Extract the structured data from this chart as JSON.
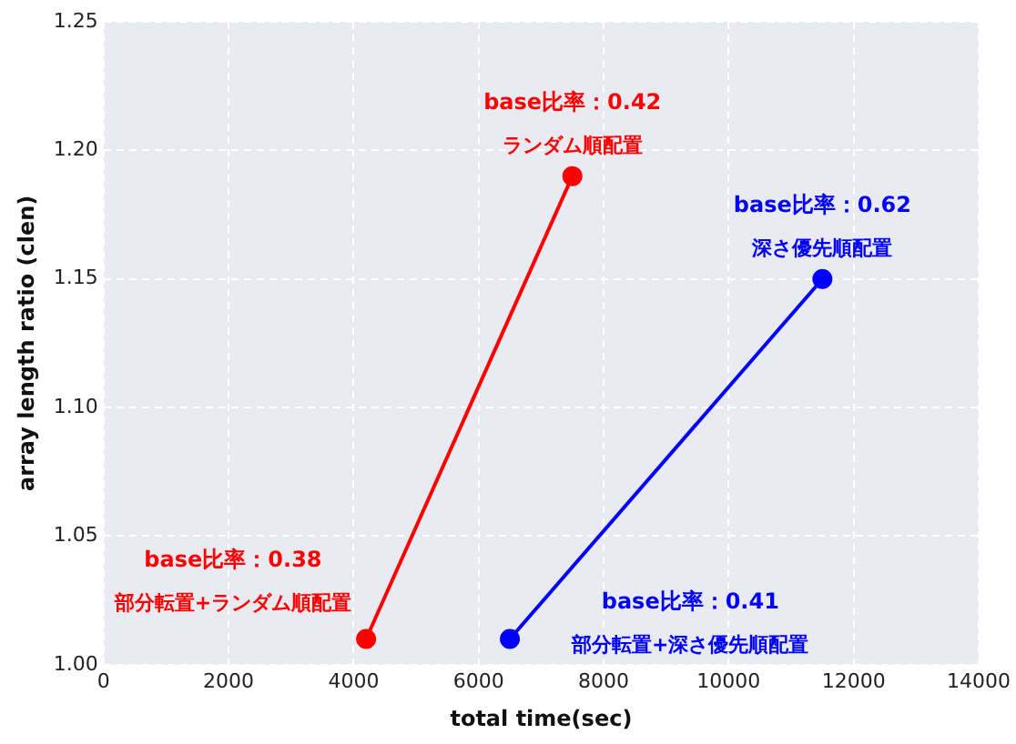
{
  "chart_data": {
    "type": "line",
    "xlabel": "total time(sec)",
    "ylabel": "array length ratio (clen)",
    "series": [
      {
        "color": "#ff0000",
        "x": [
          4200,
          7500
        ],
        "values": [
          1.01,
          1.19
        ]
      },
      {
        "color": "#0000ff",
        "x": [
          6500,
          11500
        ],
        "values": [
          1.01,
          1.15
        ]
      }
    ],
    "xlim": [
      0,
      14000
    ],
    "xticks": [
      0,
      2000,
      4000,
      6000,
      8000,
      10000,
      12000,
      14000
    ],
    "ylim": [
      1.0,
      1.25
    ],
    "yticks": [
      {
        "value": 1.0,
        "label": "1.00"
      },
      {
        "value": 1.05,
        "label": "1.05"
      },
      {
        "value": 1.1,
        "label": "1.10"
      },
      {
        "value": 1.15,
        "label": "1.15"
      },
      {
        "value": 1.2,
        "label": "1.20"
      },
      {
        "value": 1.25,
        "label": "1.25"
      }
    ],
    "grid": true,
    "legend": false,
    "marker": "circle",
    "line_style": "solid",
    "annotations": [
      {
        "text": "base比率：0.42\nランダム順配置",
        "x": 7500,
        "y": 1.19
      },
      {
        "text": "base比率：0.62\n深さ優先順配置",
        "x": 11500,
        "y": 1.15
      },
      {
        "text": "base比率：0.38\n部分転置+ランダム順配置",
        "x": 4200,
        "y": 1.01
      },
      {
        "text": "base比率：0.41\n部分転置+深さ優先順配置",
        "x": 6500,
        "y": 1.01
      }
    ]
  }
}
